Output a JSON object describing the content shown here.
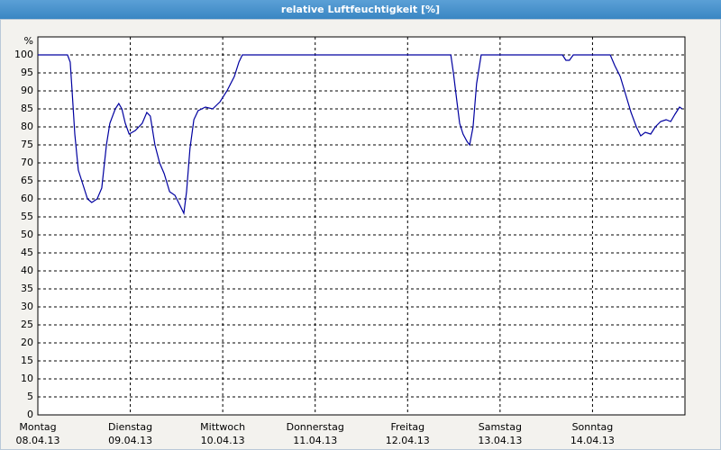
{
  "chart_data": {
    "type": "line",
    "title": "relative Luftfeuchtigkeit [%]",
    "y_unit": "%",
    "ylim": [
      0,
      105
    ],
    "yticks": [
      0,
      5,
      10,
      15,
      20,
      25,
      30,
      35,
      40,
      45,
      50,
      55,
      60,
      65,
      70,
      75,
      80,
      85,
      90,
      95,
      100
    ],
    "xlim": [
      0,
      168
    ],
    "xticks": [
      {
        "value": 0,
        "label": [
          "Montag",
          "08.04.13"
        ]
      },
      {
        "value": 24,
        "label": [
          "Dienstag",
          "09.04.13"
        ]
      },
      {
        "value": 48,
        "label": [
          "Mittwoch",
          "10.04.13"
        ]
      },
      {
        "value": 72,
        "label": [
          "Donnerstag",
          "11.04.13"
        ]
      },
      {
        "value": 96,
        "label": [
          "Freitag",
          "12.04.13"
        ]
      },
      {
        "value": 120,
        "label": [
          "Samstag",
          "13.04.13"
        ]
      },
      {
        "value": 144,
        "label": [
          "Sonntag",
          "14.04.13"
        ]
      }
    ],
    "grid": true,
    "series": [
      {
        "color": "#0000a0",
        "x": [
          0,
          7.7,
          8.4,
          8.9,
          9.6,
          10.5,
          11.7,
          12.9,
          14.0,
          15.4,
          16.6,
          17.8,
          18.7,
          20.1,
          21.0,
          21.8,
          22.7,
          23.7,
          25.3,
          27.1,
          28.3,
          29.2,
          30.4,
          31.6,
          32.8,
          34.2,
          35.6,
          37.0,
          37.9,
          38.6,
          39.5,
          40.5,
          41.6,
          43.5,
          45.4,
          47.3,
          49.1,
          51.0,
          52.2,
          53.1,
          107.2,
          107.9,
          108.8,
          109.5,
          110.4,
          111.4,
          112.1,
          113.0,
          113.9,
          115.1,
          136.2,
          137.1,
          138.0,
          139.0,
          148.6,
          149.8,
          151.2,
          152.6,
          154.0,
          155.4,
          156.5,
          157.7,
          159.1,
          160.3,
          161.7,
          163.1,
          164.3,
          165.4,
          166.6,
          167.3
        ],
        "values": [
          100,
          100,
          98,
          90,
          78,
          68,
          64,
          60,
          59,
          60,
          63,
          75,
          81,
          85,
          86.5,
          85,
          81,
          78,
          79,
          81,
          84,
          83,
          75,
          70,
          67,
          62,
          61,
          58,
          56,
          62,
          74,
          82,
          84.5,
          85.5,
          85,
          87,
          90,
          94,
          98,
          100,
          100,
          95,
          87,
          81,
          78,
          76,
          75,
          80,
          92,
          100,
          100,
          98.5,
          98.5,
          100,
          100,
          97,
          94,
          89,
          84,
          80,
          77.5,
          78.5,
          78,
          80,
          81.5,
          82,
          81.5,
          83.5,
          85.5,
          85
        ]
      }
    ]
  }
}
